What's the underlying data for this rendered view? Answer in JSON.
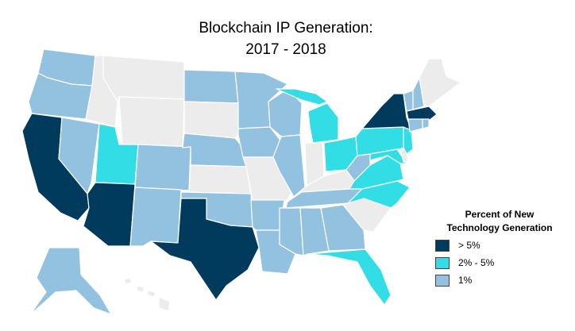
{
  "title": {
    "line1": "Blockchain IP Generation:",
    "line2": "2017 - 2018"
  },
  "legend": {
    "title_line1": "Percent of New",
    "title_line2": "Technology Generation",
    "items": [
      {
        "key": "high",
        "label": "> 5%",
        "color": "#003a5c"
      },
      {
        "key": "mid",
        "label": "2% - 5%",
        "color": "#32dde6"
      },
      {
        "key": "low",
        "label": "1%",
        "color": "#92c2e0"
      }
    ]
  },
  "colors": {
    "none": "#ececec",
    "border": "#ffffff",
    "high": "#003a5c",
    "mid": "#32dde6",
    "low": "#92c2e0"
  },
  "states": {
    "WA": "low",
    "OR": "low",
    "CA": "high",
    "NV": "low",
    "ID": "none",
    "MT": "none",
    "WY": "none",
    "UT": "mid",
    "AZ": "high",
    "CO": "low",
    "NM": "low",
    "ND": "low",
    "SD": "none",
    "NE": "low",
    "KS": "none",
    "OK": "low",
    "TX": "high",
    "MN": "low",
    "IA": "low",
    "MO": "none",
    "AR": "low",
    "LA": "low",
    "WI": "low",
    "IL": "low",
    "MI": "mid",
    "IN": "none",
    "OH": "mid",
    "KY": "none",
    "TN": "low",
    "MS": "low",
    "AL": "low",
    "GA": "low",
    "FL": "mid",
    "SC": "none",
    "NC": "mid",
    "VA": "mid",
    "WV": "low",
    "PA": "mid",
    "NY": "high",
    "VT": "low",
    "NH": "low",
    "ME": "none",
    "MA": "high",
    "CT": "low",
    "RI": "low",
    "NJ": "mid",
    "DE": "none",
    "MD": "mid",
    "AK": "low",
    "HI": "none"
  }
}
